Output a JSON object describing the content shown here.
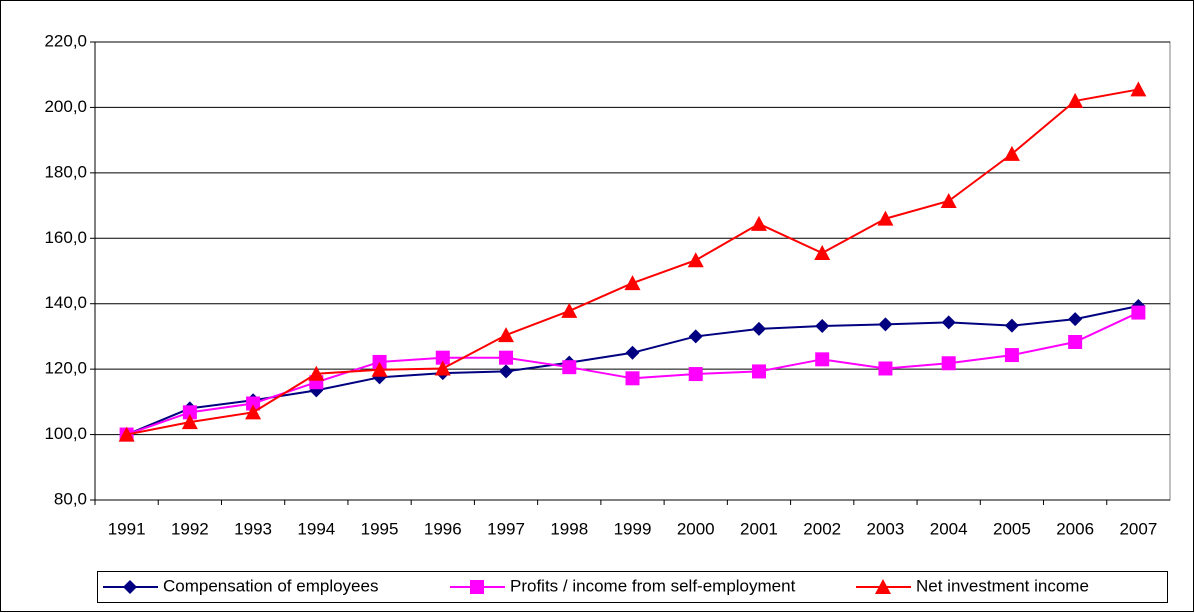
{
  "chart_data": {
    "type": "line",
    "categories": [
      "1991",
      "1992",
      "1993",
      "1994",
      "1995",
      "1996",
      "1997",
      "1998",
      "1999",
      "2000",
      "2001",
      "2002",
      "2003",
      "2004",
      "2005",
      "2006",
      "2007"
    ],
    "series": [
      {
        "name": "Compensation of employees",
        "color": "#000080",
        "marker": "diamond",
        "values": [
          100,
          108,
          110.5,
          113.5,
          117.5,
          118.8,
          119.3,
          122,
          125,
          130,
          132.3,
          133.2,
          133.7,
          134.3,
          133.3,
          135.3,
          139.3
        ]
      },
      {
        "name": "Profits / income from self-employment",
        "color": "#ff00ff",
        "marker": "square",
        "values": [
          100,
          106.8,
          109.5,
          116,
          122.2,
          123.5,
          123.5,
          120.6,
          117.2,
          118.5,
          119.3,
          123,
          120.2,
          121.8,
          124.3,
          128.3,
          137.3
        ]
      },
      {
        "name": "Net investment income",
        "color": "#ff0000",
        "marker": "triangle",
        "values": [
          100,
          103.8,
          106.8,
          118.6,
          119.8,
          120.2,
          130.4,
          137.8,
          146.3,
          153.3,
          164.4,
          155.5,
          166,
          171.4,
          185.8,
          202,
          205.5
        ]
      }
    ],
    "ylim": [
      80,
      220
    ],
    "yticks": [
      {
        "value": 80,
        "label": "80,0"
      },
      {
        "value": 100,
        "label": "100,0"
      },
      {
        "value": 120,
        "label": "120,0"
      },
      {
        "value": 140,
        "label": "140,0"
      },
      {
        "value": 160,
        "label": "160,0"
      },
      {
        "value": 180,
        "label": "180,0"
      },
      {
        "value": 200,
        "label": "200,0"
      },
      {
        "value": 220,
        "label": "220,0"
      }
    ],
    "grid": true,
    "legend": "bottom"
  }
}
